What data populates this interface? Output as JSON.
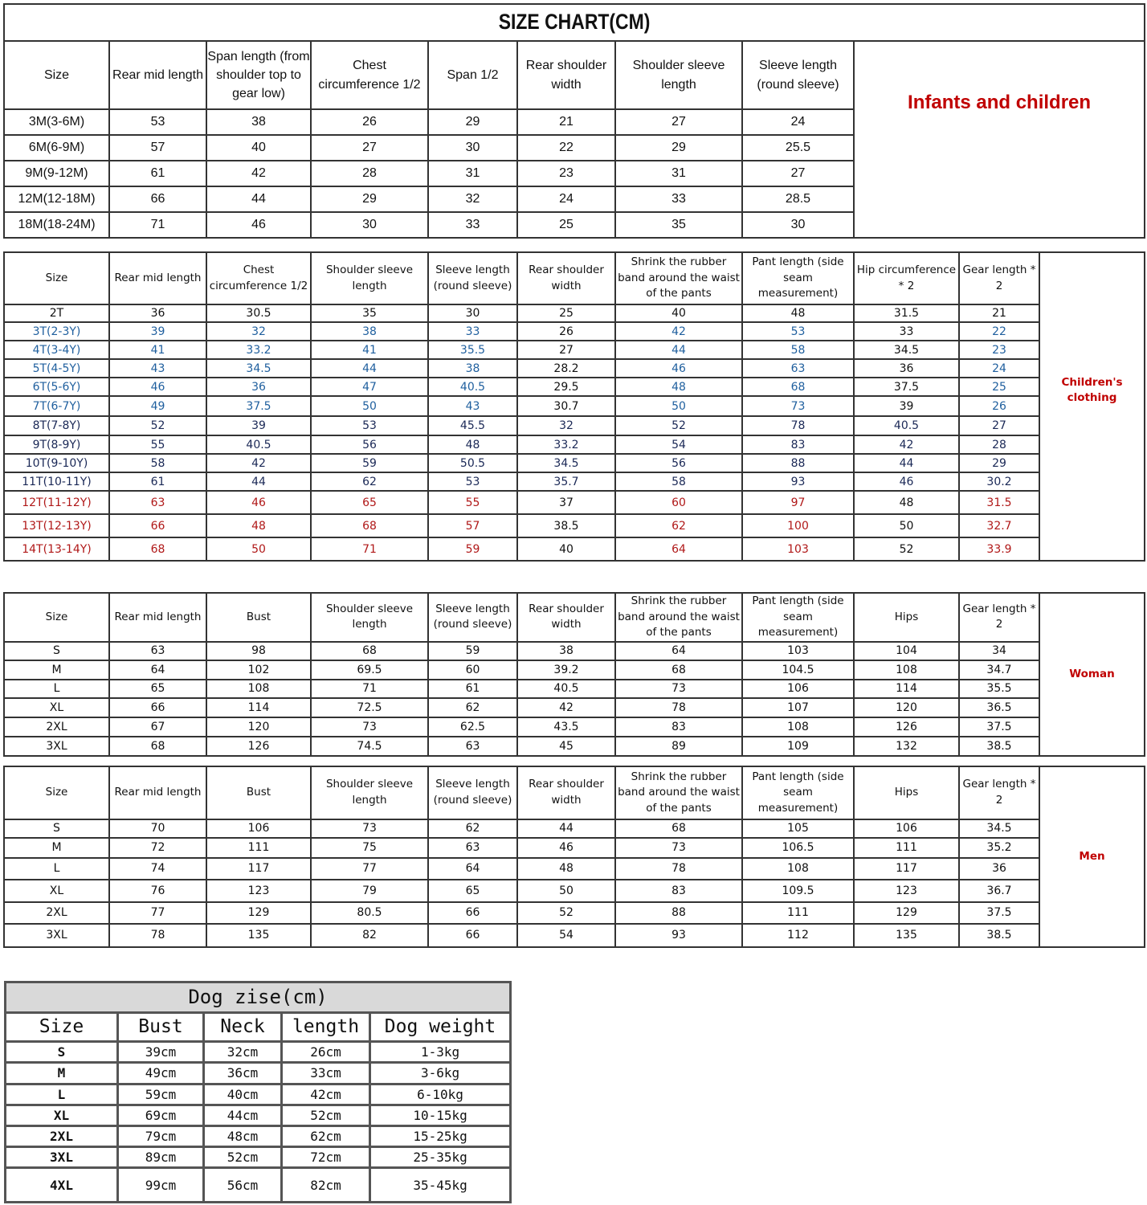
{
  "title": "SIZE CHART(CM)",
  "infants": {
    "label": "Infants and children",
    "headers": [
      "Size",
      "Rear mid length",
      "Span length (from shoulder top to gear low)",
      "Chest circumference 1/2",
      "Span 1/2",
      "Rear shoulder width",
      "Shoulder sleeve length",
      "Sleeve length (round sleeve)"
    ],
    "rows": [
      [
        "3M(3-6M)",
        "53",
        "38",
        "26",
        "29",
        "21",
        "27",
        "24"
      ],
      [
        "6M(6-9M)",
        "57",
        "40",
        "27",
        "30",
        "22",
        "29",
        "25.5"
      ],
      [
        "9M(9-12M)",
        "61",
        "42",
        "28",
        "31",
        "23",
        "31",
        "27"
      ],
      [
        "12M(12-18M)",
        "66",
        "44",
        "29",
        "32",
        "24",
        "33",
        "28.5"
      ],
      [
        "18M(18-24M)",
        "71",
        "46",
        "30",
        "33",
        "25",
        "35",
        "30"
      ]
    ]
  },
  "children": {
    "label": "Children's clothing",
    "headers": [
      "Size",
      "Rear mid length",
      "Chest circumference 1/2",
      "Shoulder sleeve length",
      "Sleeve length (round sleeve)",
      "Rear shoulder width",
      "Shrink the rubber band around the waist of the pants",
      "Pant length (side seam measurement)",
      "Hip circumference * 2",
      "Gear length * 2"
    ],
    "rows": [
      [
        "2T",
        "36",
        "30.5",
        "35",
        "30",
        "25",
        "40",
        "48",
        "31.5",
        "21"
      ],
      [
        "3T(2-3Y)",
        "39",
        "32",
        "38",
        "33",
        "26",
        "42",
        "53",
        "33",
        "22"
      ],
      [
        "4T(3-4Y)",
        "41",
        "33.2",
        "41",
        "35.5",
        "27",
        "44",
        "58",
        "34.5",
        "23"
      ],
      [
        "5T(4-5Y)",
        "43",
        "34.5",
        "44",
        "38",
        "28.2",
        "46",
        "63",
        "36",
        "24"
      ],
      [
        "6T(5-6Y)",
        "46",
        "36",
        "47",
        "40.5",
        "29.5",
        "48",
        "68",
        "37.5",
        "25"
      ],
      [
        "7T(6-7Y)",
        "49",
        "37.5",
        "50",
        "43",
        "30.7",
        "50",
        "73",
        "39",
        "26"
      ],
      [
        "8T(7-8Y)",
        "52",
        "39",
        "53",
        "45.5",
        "32",
        "52",
        "78",
        "40.5",
        "27"
      ],
      [
        "9T(8-9Y)",
        "55",
        "40.5",
        "56",
        "48",
        "33.2",
        "54",
        "83",
        "42",
        "28"
      ],
      [
        "10T(9-10Y)",
        "58",
        "42",
        "59",
        "50.5",
        "34.5",
        "56",
        "88",
        "44",
        "29"
      ],
      [
        "11T(10-11Y)",
        "61",
        "44",
        "62",
        "53",
        "35.7",
        "58",
        "93",
        "46",
        "30.2"
      ],
      [
        "12T(11-12Y)",
        "63",
        "46",
        "65",
        "55",
        "37",
        "60",
        "97",
        "48",
        "31.5"
      ],
      [
        "13T(12-13Y)",
        "66",
        "48",
        "68",
        "57",
        "38.5",
        "62",
        "100",
        "50",
        "32.7"
      ],
      [
        "14T(13-14Y)",
        "68",
        "50",
        "71",
        "59",
        "40",
        "64",
        "103",
        "52",
        "33.9"
      ]
    ],
    "row_colors": [
      "#111111",
      "#1f5f9e",
      "#1f5f9e",
      "#1f5f9e",
      "#1f5f9e",
      "#1f5f9e",
      "#1a2856",
      "#1a2856",
      "#1a2856",
      "#1a2856",
      "#b01818",
      "#b01818",
      "#b01818"
    ]
  },
  "woman": {
    "label": "Woman",
    "headers": [
      "Size",
      "Rear mid length",
      "Bust",
      "Shoulder sleeve length",
      "Sleeve length (round sleeve)",
      "Rear shoulder width",
      "Shrink the rubber band around the waist of the pants",
      "Pant length (side seam measurement)",
      "Hips",
      "Gear length * 2"
    ],
    "rows": [
      [
        "S",
        "63",
        "98",
        "68",
        "59",
        "38",
        "64",
        "103",
        "104",
        "34"
      ],
      [
        "M",
        "64",
        "102",
        "69.5",
        "60",
        "39.2",
        "68",
        "104.5",
        "108",
        "34.7"
      ],
      [
        "L",
        "65",
        "108",
        "71",
        "61",
        "40.5",
        "73",
        "106",
        "114",
        "35.5"
      ],
      [
        "XL",
        "66",
        "114",
        "72.5",
        "62",
        "42",
        "78",
        "107",
        "120",
        "36.5"
      ],
      [
        "2XL",
        "67",
        "120",
        "73",
        "62.5",
        "43.5",
        "83",
        "108",
        "126",
        "37.5"
      ],
      [
        "3XL",
        "68",
        "126",
        "74.5",
        "63",
        "45",
        "89",
        "109",
        "132",
        "38.5"
      ]
    ]
  },
  "men": {
    "label": "Men",
    "headers": [
      "Size",
      "Rear mid length",
      "Bust",
      "Shoulder sleeve length",
      "Sleeve length (round sleeve)",
      "Rear shoulder width",
      "Shrink the rubber band around the waist of the pants",
      "Pant length (side seam measurement)",
      "Hips",
      "Gear length * 2"
    ],
    "rows": [
      [
        "S",
        "70",
        "106",
        "73",
        "62",
        "44",
        "68",
        "105",
        "106",
        "34.5"
      ],
      [
        "M",
        "72",
        "111",
        "75",
        "63",
        "46",
        "73",
        "106.5",
        "111",
        "35.2"
      ],
      [
        "L",
        "74",
        "117",
        "77",
        "64",
        "48",
        "78",
        "108",
        "117",
        "36"
      ],
      [
        "XL",
        "76",
        "123",
        "79",
        "65",
        "50",
        "83",
        "109.5",
        "123",
        "36.7"
      ],
      [
        "2XL",
        "77",
        "129",
        "80.5",
        "66",
        "52",
        "88",
        "111",
        "129",
        "37.5"
      ],
      [
        "3XL",
        "78",
        "135",
        "82",
        "66",
        "54",
        "93",
        "112",
        "135",
        "38.5"
      ]
    ]
  },
  "dog": {
    "title": "Dog zise(cm)",
    "headers": [
      "Size",
      "Bust",
      "Neck",
      "length",
      "Dog weight"
    ],
    "rows": [
      [
        "S",
        "39cm",
        "32cm",
        "26cm",
        "1-3kg"
      ],
      [
        "M",
        "49cm",
        "36cm",
        "33cm",
        "3-6kg"
      ],
      [
        "L",
        "59cm",
        "40cm",
        "42cm",
        "6-10kg"
      ],
      [
        "XL",
        "69cm",
        "44cm",
        "52cm",
        "10-15kg"
      ],
      [
        "2XL",
        "79cm",
        "48cm",
        "62cm",
        "15-25kg"
      ],
      [
        "3XL",
        "89cm",
        "52cm",
        "72cm",
        "25-35kg"
      ],
      [
        "4XL",
        "99cm",
        "56cm",
        "82cm",
        "35-45kg"
      ]
    ]
  },
  "label_color": "#c00000"
}
